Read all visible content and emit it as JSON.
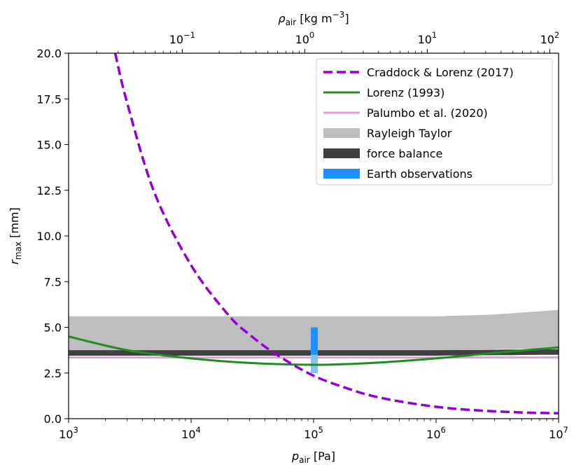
{
  "chart_data": {
    "type": "line",
    "xlabel": {
      "sym": "p",
      "sub": "air",
      "unit": " [Pa]"
    },
    "ylabel": {
      "sym": "r",
      "sub": "max",
      "unit": " [mm]"
    },
    "top_xlabel": {
      "sym": "ρ",
      "sub": "air",
      "unit": " [kg m",
      "sup": "−3",
      "close": "]"
    },
    "x_scale": "log",
    "xlim": [
      1000,
      10000000
    ],
    "ylim": [
      0,
      20
    ],
    "top_x_scale": "log",
    "top_xlim": [
      0.0118,
      118
    ],
    "x_ticks": [
      {
        "value": 1000,
        "base": "10",
        "exp": "3"
      },
      {
        "value": 10000,
        "base": "10",
        "exp": "4"
      },
      {
        "value": 100000,
        "base": "10",
        "exp": "5"
      },
      {
        "value": 1000000,
        "base": "10",
        "exp": "6"
      },
      {
        "value": 10000000,
        "base": "10",
        "exp": "7"
      }
    ],
    "top_x_ticks": [
      {
        "value": 0.1,
        "base": "10",
        "exp": "−1"
      },
      {
        "value": 1,
        "base": "10",
        "exp": "0"
      },
      {
        "value": 10,
        "base": "10",
        "exp": "1"
      },
      {
        "value": 100,
        "base": "10",
        "exp": "2"
      }
    ],
    "y_ticks": [
      "0.0",
      "2.5",
      "5.0",
      "7.5",
      "10.0",
      "12.5",
      "15.0",
      "17.5",
      "20.0"
    ],
    "legend_position": "top-right",
    "grid": false,
    "series": [
      {
        "name": "Craddock & Lorenz (2017)",
        "kind": "line",
        "style": "dashed",
        "color": "#9400d3",
        "x": [
          2400,
          3000,
          5000,
          10000,
          20000,
          30000,
          50000,
          100000,
          200000,
          300000,
          500000,
          1000000,
          2000000,
          5000000,
          10000000
        ],
        "y": [
          20.0,
          17.3,
          12.4,
          8.4,
          5.7,
          4.6,
          3.5,
          2.35,
          1.6,
          1.25,
          0.95,
          0.65,
          0.47,
          0.34,
          0.3
        ]
      },
      {
        "name": "Lorenz (1993)",
        "kind": "line",
        "style": "solid",
        "color": "#228b22",
        "x": [
          1000,
          3000,
          10000,
          30000,
          100000,
          300000,
          1000000,
          3000000,
          10000000
        ],
        "y": [
          4.5,
          3.75,
          3.3,
          3.05,
          2.95,
          3.05,
          3.3,
          3.6,
          3.9
        ]
      },
      {
        "name": "Palumbo et al. (2020)",
        "kind": "line",
        "style": "solid",
        "color": "#dda0dd",
        "x": [
          1000,
          10000000
        ],
        "y": [
          3.35,
          3.35
        ]
      },
      {
        "name": "Rayleigh Taylor",
        "kind": "band",
        "color": "#bebebe",
        "x": [
          1000,
          1000000,
          3000000,
          10000000
        ],
        "y_low": [
          3.75,
          3.75,
          3.8,
          3.85
        ],
        "y_high": [
          5.6,
          5.6,
          5.7,
          5.95
        ]
      },
      {
        "name": "force balance",
        "kind": "band",
        "color": "#404040",
        "x": [
          1000,
          1000000,
          10000000
        ],
        "y_low": [
          3.45,
          3.45,
          3.5
        ],
        "y_high": [
          3.75,
          3.75,
          3.8
        ]
      },
      {
        "name": "Earth observations",
        "kind": "vband",
        "color": "#1e90ff",
        "x": 101325,
        "y_range": [
          2.5,
          5.0
        ]
      }
    ]
  }
}
